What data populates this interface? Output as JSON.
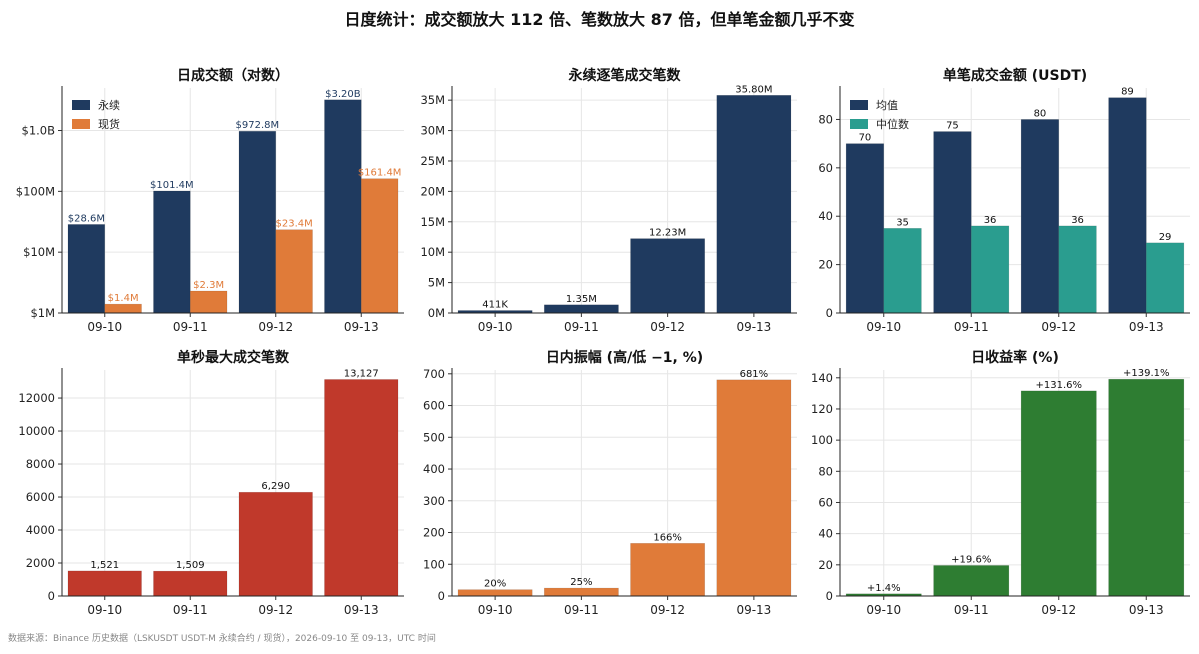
{
  "page": {
    "title": "日度统计：成交额放大 112 倍、笔数放大 87 倍，但单笔金额几乎不变",
    "footnote": "数据来源：Binance 历史数据（LSKUSDT USDT-M 永续合约 / 现货），2026-09-10 至 09-13，UTC 时间"
  },
  "colors": {
    "navy": "#1f3a5f",
    "orange": "#e07b39",
    "teal": "#2a9d8f",
    "red": "#c0392b",
    "green": "#2e7d32"
  },
  "chart_data": [
    {
      "type": "bar",
      "title": "日成交额（对数）",
      "categories": [
        "09-10",
        "09-11",
        "09-12",
        "09-13"
      ],
      "yscale": "log",
      "ylim": [
        1000000,
        5000000000
      ],
      "yticks": [
        1000000,
        10000000,
        100000000,
        1000000000
      ],
      "ytick_labels": [
        "$1M",
        "$10M",
        "$100M",
        "$1.0B"
      ],
      "legend": "top-left",
      "series": [
        {
          "name": "永续",
          "color": "navy",
          "values": [
            28600000,
            101400000,
            972800000,
            3200000000
          ],
          "labels": [
            "$28.6M",
            "$101.4M",
            "$972.8M",
            "$3.20B"
          ]
        },
        {
          "name": "现货",
          "color": "orange",
          "values": [
            1400000,
            2300000,
            23400000,
            161400000
          ],
          "labels": [
            "$1.4M",
            "$2.3M",
            "$23.4M",
            "$161.4M"
          ]
        }
      ]
    },
    {
      "type": "bar",
      "title": "永续逐笔成交笔数",
      "categories": [
        "09-10",
        "09-11",
        "09-12",
        "09-13"
      ],
      "ylim": [
        0,
        37000000
      ],
      "yticks": [
        0,
        5000000,
        10000000,
        15000000,
        20000000,
        25000000,
        30000000,
        35000000
      ],
      "ytick_labels": [
        "0M",
        "5M",
        "10M",
        "15M",
        "20M",
        "25M",
        "30M",
        "35M"
      ],
      "series": [
        {
          "color": "navy",
          "values": [
            411000,
            1350000,
            12230000,
            35800000
          ],
          "labels": [
            "411K",
            "1.35M",
            "12.23M",
            "35.80M"
          ]
        }
      ]
    },
    {
      "type": "bar",
      "title": "单笔成交金额 (USDT)",
      "categories": [
        "09-10",
        "09-11",
        "09-12",
        "09-13"
      ],
      "ylim": [
        0,
        93
      ],
      "yticks": [
        0,
        20,
        40,
        60,
        80
      ],
      "ytick_labels": [
        "0",
        "20",
        "40",
        "60",
        "80"
      ],
      "legend": "top-left",
      "series": [
        {
          "name": "均值",
          "color": "navy",
          "values": [
            70,
            75,
            80,
            89
          ],
          "labels": [
            "70",
            "75",
            "80",
            "89"
          ]
        },
        {
          "name": "中位数",
          "color": "teal",
          "values": [
            35,
            36,
            36,
            29
          ],
          "labels": [
            "35",
            "36",
            "36",
            "29"
          ]
        }
      ]
    },
    {
      "type": "bar",
      "title": "单秒最大成交笔数",
      "categories": [
        "09-10",
        "09-11",
        "09-12",
        "09-13"
      ],
      "ylim": [
        0,
        13700
      ],
      "yticks": [
        0,
        2000,
        4000,
        6000,
        8000,
        10000,
        12000
      ],
      "ytick_labels": [
        "0",
        "2000",
        "4000",
        "6000",
        "8000",
        "10000",
        "12000"
      ],
      "series": [
        {
          "color": "red",
          "values": [
            1521,
            1509,
            6290,
            13127
          ],
          "labels": [
            "1,521",
            "1,509",
            "6,290",
            "13,127"
          ]
        }
      ]
    },
    {
      "type": "bar",
      "title": "日内振幅 (高/低 −1, %)",
      "categories": [
        "09-10",
        "09-11",
        "09-12",
        "09-13"
      ],
      "ylim": [
        0,
        712
      ],
      "yticks": [
        0,
        100,
        200,
        300,
        400,
        500,
        600,
        700
      ],
      "ytick_labels": [
        "0",
        "100",
        "200",
        "300",
        "400",
        "500",
        "600",
        "700"
      ],
      "series": [
        {
          "color": "orange",
          "values": [
            20,
            25,
            166,
            681
          ],
          "labels": [
            "20%",
            "25%",
            "166%",
            "681%"
          ]
        }
      ]
    },
    {
      "type": "bar",
      "title": "日收益率 (%)",
      "categories": [
        "09-10",
        "09-11",
        "09-12",
        "09-13"
      ],
      "ylim": [
        0,
        145
      ],
      "yticks": [
        0,
        20,
        40,
        60,
        80,
        100,
        120,
        140
      ],
      "ytick_labels": [
        "0",
        "20",
        "40",
        "60",
        "80",
        "100",
        "120",
        "140"
      ],
      "series": [
        {
          "color": "green",
          "values": [
            1.4,
            19.6,
            131.6,
            139.1
          ],
          "labels": [
            "+1.4%",
            "+19.6%",
            "+131.6%",
            "+139.1%"
          ]
        }
      ]
    }
  ]
}
